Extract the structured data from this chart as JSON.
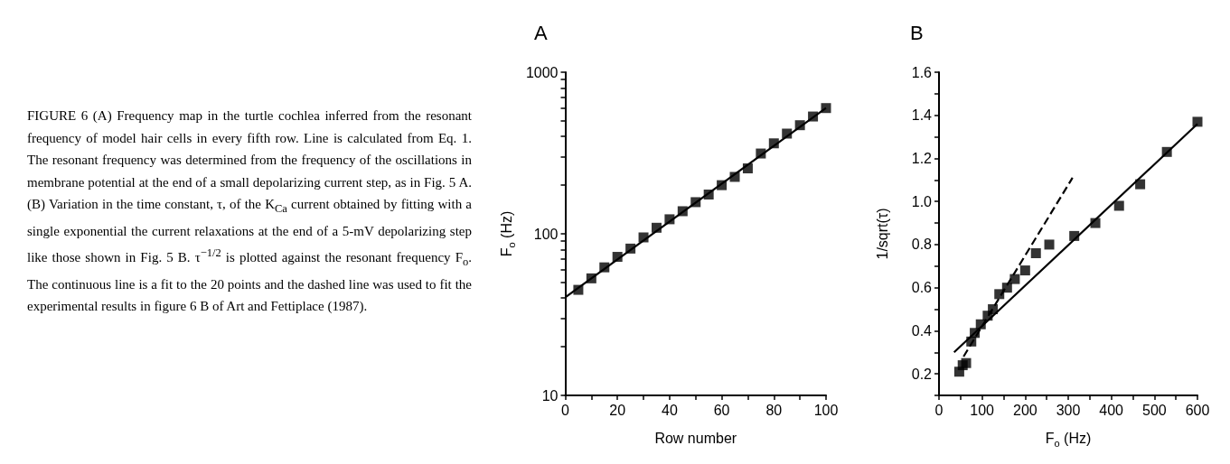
{
  "chart_data": [
    {
      "type": "other",
      "annotations": [
        "FIGURE 6  (A) Frequency map in the turtle cochlea inferred from the resonant frequency of model hair cells in every fifth row. Line is calculated from Eq. 1. The resonant frequency was determined from the frequency of the oscillations in membrane potential at the end of a small depolarizing current step, as in Fig. 5 A. (B) Variation in the time constant, τ, of the K$_{Ca}$ current obtained by fitting with a single exponential the current relaxations at the end of a 5-mV depolarizing step like those shown in Fig. 5 B. τ$^{−1/2}$ is plotted against the resonant frequency F$_{o}$. The continuous line is a fit to the 20 points and the dashed line was used to fit the experimental results in figure 6 B of Art and Fettiplace (1987)."
      ]
    },
    {
      "type": "scatter",
      "title": "A",
      "xlabel": "Row number",
      "ylabel": "F$_{o}$ (Hz)",
      "log": "y",
      "xlim": [
        0,
        100
      ],
      "ylim": [
        10,
        1000
      ],
      "xticks": [
        0,
        {
          "value": 10,
          "label": null
        },
        20,
        {
          "value": 30,
          "label": null
        },
        40,
        {
          "value": 50,
          "label": null
        },
        60,
        {
          "value": 70,
          "label": null
        },
        80,
        {
          "value": 90,
          "label": null
        },
        100
      ],
      "yticks": [
        10,
        {
          "value": 20,
          "label": null
        },
        {
          "value": 30,
          "label": null
        },
        {
          "value": 40,
          "label": null
        },
        {
          "value": 50,
          "label": null
        },
        {
          "value": 60,
          "label": null
        },
        {
          "value": 70,
          "label": null
        },
        {
          "value": 80,
          "label": null
        },
        {
          "value": 90,
          "label": null
        },
        100,
        {
          "value": 200,
          "label": null
        },
        {
          "value": 300,
          "label": null
        },
        {
          "value": 400,
          "label": null
        },
        {
          "value": 500,
          "label": null
        },
        {
          "value": 600,
          "label": null
        },
        {
          "value": 700,
          "label": null
        },
        {
          "value": 800,
          "label": null
        },
        {
          "value": 900,
          "label": null
        },
        1000
      ],
      "series": [
        {
          "type": "scatter",
          "marker": "square",
          "color": "#000000",
          "x": [
            5,
            10,
            15,
            20,
            25,
            30,
            35,
            40,
            45,
            50,
            55,
            60,
            65,
            70,
            75,
            80,
            85,
            90,
            95,
            100
          ],
          "values": [
            45,
            53,
            62,
            72,
            81,
            95,
            109,
            123,
            138,
            157,
            175,
            200,
            225,
            254,
            314,
            363,
            417,
            470,
            532,
            600
          ]
        },
        {
          "type": "line",
          "marker": "none",
          "color": "#000000",
          "line_style": "solid",
          "x": [
            0,
            100
          ],
          "values": [
            40.5,
            600
          ]
        }
      ]
    },
    {
      "type": "scatter",
      "title": "B",
      "xlabel": "F$_{o}$ (Hz)",
      "ylabel": "1/sqrt(τ)",
      "xlim": [
        0,
        600
      ],
      "ylim": [
        0.1,
        1.6
      ],
      "xticks": [
        0,
        {
          "value": 50,
          "label": null
        },
        100,
        {
          "value": 150,
          "label": null
        },
        200,
        {
          "value": 250,
          "label": null
        },
        300,
        {
          "value": 350,
          "label": null
        },
        400,
        {
          "value": 450,
          "label": null
        },
        500,
        {
          "value": 550,
          "label": null
        },
        600
      ],
      "yticks": [
        {
          "value": 0.1,
          "label": null
        },
        {
          "value": 0.2,
          "label": "0.2"
        },
        {
          "value": 0.3,
          "label": null
        },
        {
          "value": 0.4,
          "label": "0.4"
        },
        {
          "value": 0.5,
          "label": null
        },
        {
          "value": 0.6,
          "label": "0.6"
        },
        {
          "value": 0.7,
          "label": null
        },
        {
          "value": 0.8,
          "label": "0.8"
        },
        {
          "value": 0.9,
          "label": null
        },
        {
          "value": 1.0,
          "label": "1.0"
        },
        {
          "value": 1.1,
          "label": null
        },
        {
          "value": 1.2,
          "label": "1.2"
        },
        {
          "value": 1.3,
          "label": null
        },
        {
          "value": 1.4,
          "label": "1.4"
        },
        {
          "value": 1.5,
          "label": null
        },
        {
          "value": 1.6,
          "label": "1.6"
        }
      ],
      "series": [
        {
          "type": "scatter",
          "marker": "square",
          "color": "#000000",
          "x": [
            47,
            55,
            63,
            75,
            83,
            97,
            113,
            125,
            140,
            158,
            176,
            200,
            225,
            256,
            314,
            363,
            418,
            467,
            529,
            600
          ],
          "values": [
            0.21,
            0.24,
            0.25,
            0.35,
            0.39,
            0.43,
            0.47,
            0.5,
            0.57,
            0.6,
            0.64,
            0.68,
            0.76,
            0.8,
            0.84,
            0.9,
            0.98,
            1.08,
            1.23,
            1.37
          ]
        },
        {
          "type": "line",
          "marker": "none",
          "color": "#000000",
          "line_style": "solid",
          "x": [
            35,
            600
          ],
          "values": [
            0.3,
            1.36
          ]
        },
        {
          "type": "line",
          "marker": "none",
          "color": "#000000",
          "line_style": "dashed",
          "x": [
            57,
            310
          ],
          "values": [
            0.28,
            1.11
          ]
        }
      ]
    }
  ]
}
